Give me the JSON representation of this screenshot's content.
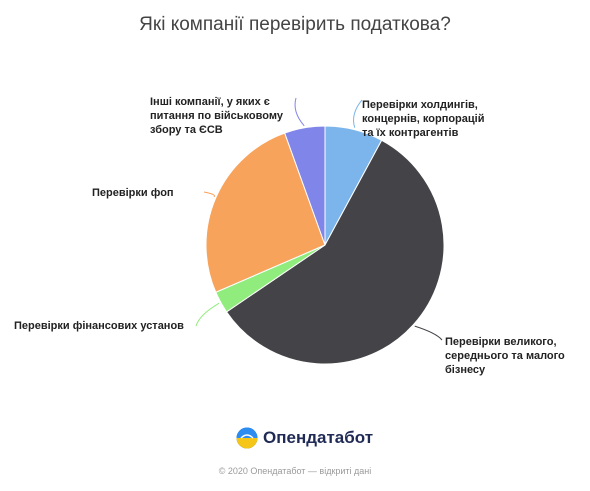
{
  "title": "Які компанії перевірить податкова?",
  "chart_data": {
    "type": "pie",
    "start": "12 o'clock",
    "direction": "clockwise",
    "slices": [
      {
        "label": "Перевірки холдингів, концернів, корпорацій та їх контрагентів",
        "value": 7.9,
        "color": "#7cb5ec"
      },
      {
        "label": "Перевірки великого, середнього та малого бізнесу",
        "value": 57.6,
        "color": "#434348"
      },
      {
        "label": "Перевірки фінансових установ",
        "value": 3.0,
        "color": "#90ed7d"
      },
      {
        "label": "Перевірки фоп",
        "value": 26.0,
        "color": "#f7a35c"
      },
      {
        "label": "Інші компанії, у яких є питання по військовому збору та ЄСВ",
        "value": 5.5,
        "color": "#8085e9"
      }
    ]
  },
  "labels": {
    "holdings": [
      "Перевірки холдингів,",
      "концернів, корпорацій",
      "та їх контрагентів"
    ],
    "business": [
      "Перевірки великого,",
      "середнього та малого",
      "бізнесу"
    ],
    "finance": [
      "Перевірки фінансових установ"
    ],
    "fop": [
      "Перевірки фоп"
    ],
    "other": [
      "Інші компанії, у яких є",
      "питання по військовому",
      "збору та ЄСВ"
    ]
  },
  "brand": {
    "name": "Опендатабот"
  },
  "footer": "© 2020 Опендатабот — відкриті дані"
}
